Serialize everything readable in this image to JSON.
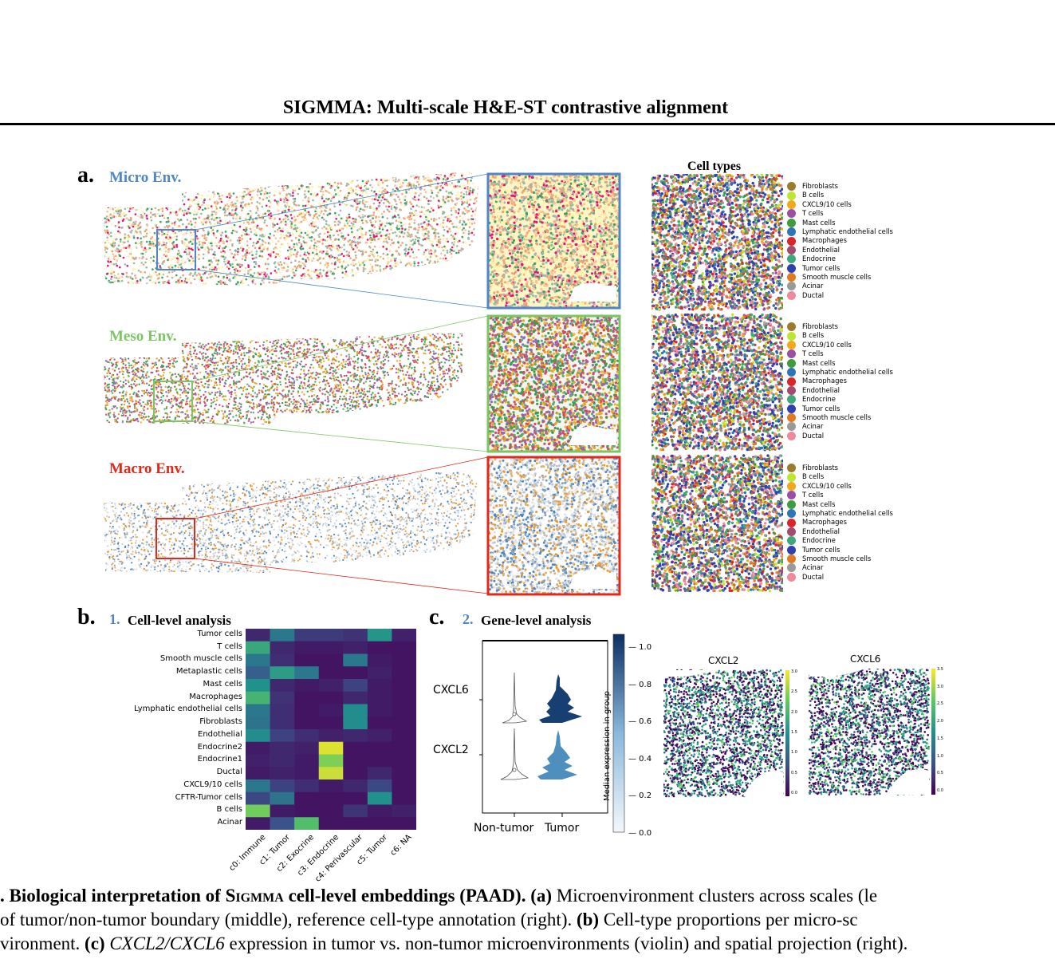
{
  "header": {
    "title": "SIGMMA: Multi-scale H&E-ST contrastive alignment"
  },
  "panel_a": {
    "letter": "a.",
    "envs": [
      {
        "label": "Micro Env.",
        "color": "#4f86c6"
      },
      {
        "label": "Meso Env.",
        "color": "#7cc563"
      },
      {
        "label": "Macro Env.",
        "color": "#e0281c"
      }
    ],
    "cell_types_title": "Cell types",
    "legend": [
      {
        "name": "Fibroblasts",
        "color": "#9c7a2e"
      },
      {
        "name": "B cells",
        "color": "#bde632"
      },
      {
        "name": "CXCL9/10 cells",
        "color": "#f2a81c"
      },
      {
        "name": "T cells",
        "color": "#9a4fa5"
      },
      {
        "name": "Mast cells",
        "color": "#3f9b3f"
      },
      {
        "name": "Lymphatic endothelial cells",
        "color": "#2f74b8"
      },
      {
        "name": "Macrophages",
        "color": "#d8262a"
      },
      {
        "name": "Endothelial",
        "color": "#a34b6e"
      },
      {
        "name": "Endocrine",
        "color": "#3fa87a"
      },
      {
        "name": "Tumor cells",
        "color": "#3040b0"
      },
      {
        "name": "Smooth muscle cells",
        "color": "#e07b22"
      },
      {
        "name": "Acinar",
        "color": "#9a9a9a"
      },
      {
        "name": "Ductal",
        "color": "#f08a9a"
      }
    ]
  },
  "panel_b": {
    "letter": "b.",
    "number": "1.",
    "title": "Cell-level analysis",
    "rows": [
      "Tumor cells",
      "T cells",
      "Smooth muscle cells",
      "Metaplastic cells",
      "Mast cells",
      "Macrophages",
      "Lymphatic endothelial cells",
      "Fibroblasts",
      "Endothelial",
      "Endocrine2",
      "Endocrine1",
      "Ductal",
      "CXCL9/10 cells",
      "CFTR-Tumor cells",
      "B cells",
      "Acinar"
    ],
    "cols": [
      "c0: Immune",
      "c1: Tumor",
      "c2: Exocrine",
      "c3: Endocrine",
      "c4: Perivascular",
      "c5: Tumor",
      "c6: NA"
    ],
    "values": [
      [
        0.12,
        0.4,
        0.18,
        0.18,
        0.15,
        0.52,
        0.1
      ],
      [
        0.6,
        0.12,
        0.08,
        0.08,
        0.1,
        0.06,
        0.06
      ],
      [
        0.4,
        0.14,
        0.06,
        0.06,
        0.4,
        0.08,
        0.06
      ],
      [
        0.3,
        0.55,
        0.4,
        0.06,
        0.06,
        0.1,
        0.06
      ],
      [
        0.5,
        0.12,
        0.08,
        0.1,
        0.2,
        0.08,
        0.06
      ],
      [
        0.65,
        0.15,
        0.06,
        0.06,
        0.12,
        0.08,
        0.06
      ],
      [
        0.4,
        0.14,
        0.06,
        0.08,
        0.48,
        0.08,
        0.06
      ],
      [
        0.38,
        0.14,
        0.06,
        0.06,
        0.48,
        0.06,
        0.06
      ],
      [
        0.48,
        0.2,
        0.14,
        0.1,
        0.12,
        0.1,
        0.06
      ],
      [
        0.08,
        0.12,
        0.1,
        0.95,
        0.06,
        0.06,
        0.06
      ],
      [
        0.1,
        0.12,
        0.08,
        0.8,
        0.06,
        0.06,
        0.06
      ],
      [
        0.08,
        0.1,
        0.08,
        0.92,
        0.06,
        0.12,
        0.06
      ],
      [
        0.4,
        0.2,
        0.14,
        0.08,
        0.12,
        0.22,
        0.06
      ],
      [
        0.22,
        0.38,
        0.06,
        0.06,
        0.06,
        0.5,
        0.06
      ],
      [
        0.78,
        0.08,
        0.06,
        0.06,
        0.16,
        0.08,
        0.1
      ],
      [
        0.08,
        0.25,
        0.7,
        0.06,
        0.06,
        0.06,
        0.06
      ]
    ]
  },
  "panel_c": {
    "letter": "c.",
    "number": "2.",
    "title": "Gene-level analysis",
    "genes": [
      "CXCL6",
      "CXCL2"
    ],
    "groups": [
      "Non-tumor",
      "Tumor"
    ],
    "colorbar_label": "Median expression in group",
    "colorbar_ticks": [
      "1.0",
      "0.8",
      "0.6",
      "0.4",
      "0.2",
      "0.0"
    ],
    "spatial": [
      {
        "title": "CXCL2",
        "ticks": [
          "3.0",
          "2.5",
          "2.0",
          "1.5",
          "1.0",
          "0.5",
          "0.0"
        ]
      },
      {
        "title": "CXCL6",
        "ticks": [
          "3.5",
          "3.0",
          "2.5",
          "2.0",
          "1.5",
          "1.0",
          "0.5",
          "0.0"
        ]
      }
    ]
  },
  "caption": {
    "line1_a": ". Biological interpretation of ",
    "line1_b": "Sigmma",
    "line1_c": " cell-level embeddings (PAAD). (a)",
    "line1_d": " Microenvironment clusters across scales (le",
    "line2_a": " of tumor/non-tumor boundary (middle), reference cell-type annotation (right). ",
    "line2_b": "(b)",
    "line2_c": " Cell-type proportions per micro-sc",
    "line3_a": "vironment. ",
    "line3_b": "(c)",
    "line3_c": " CXCL2/CXCL6",
    "line3_d": " expression in tumor vs. non-tumor microenvironments (violin) and spatial projection (right)."
  }
}
